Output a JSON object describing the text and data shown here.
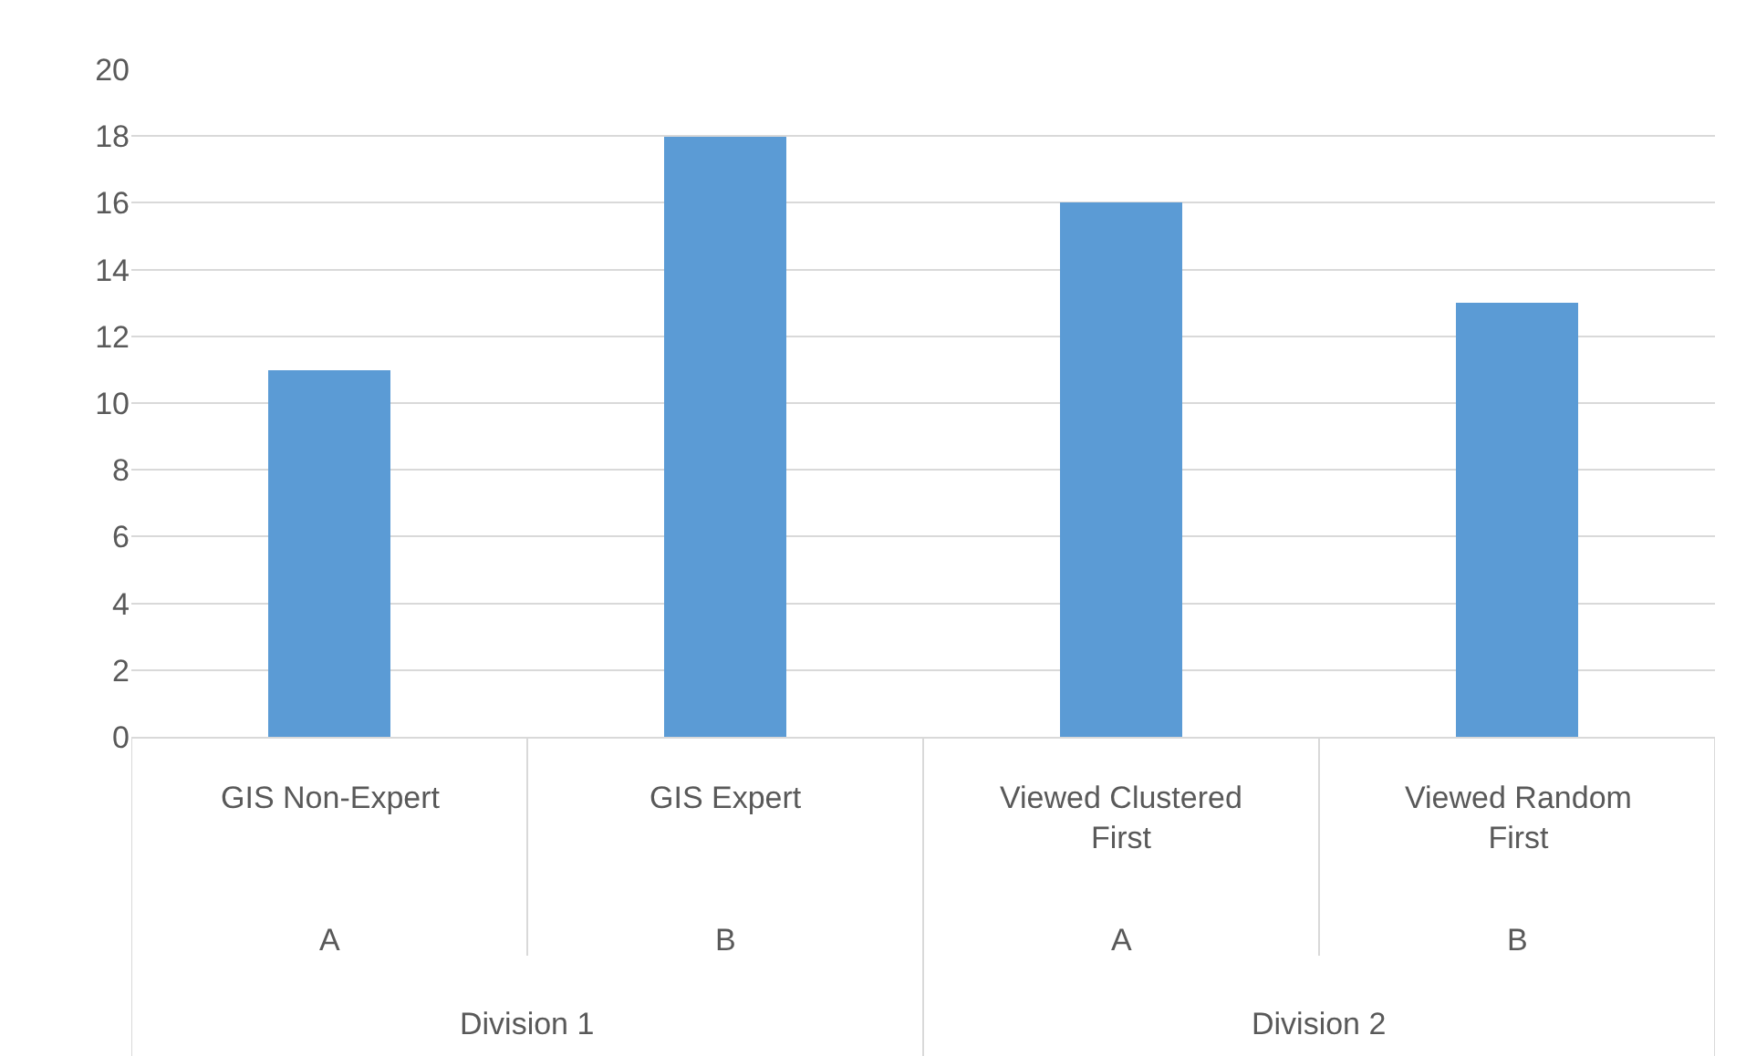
{
  "chart_data": {
    "type": "bar",
    "categories": [
      "GIS Non-Expert",
      "GIS Expert",
      "Viewed Clustered First",
      "Viewed Random First"
    ],
    "values": [
      11,
      18,
      16,
      13
    ],
    "color": "#5b9bd5",
    "ylim": [
      0,
      20
    ],
    "yticks": [
      0,
      2,
      4,
      6,
      8,
      10,
      12,
      14,
      16,
      18,
      20
    ],
    "grid": "y",
    "legend": false,
    "annotations": [
      "A",
      "B",
      "A",
      "B",
      "Division 1",
      "Division 2"
    ]
  }
}
